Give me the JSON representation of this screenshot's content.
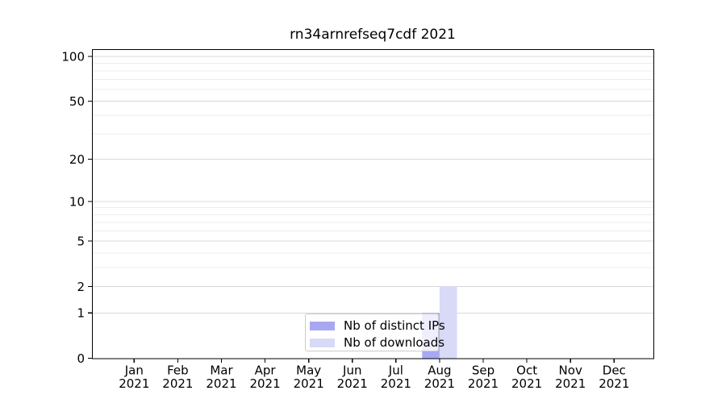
{
  "title": "rn34arnrefseq7cdf 2021",
  "legend": {
    "items": [
      {
        "label": "Nb of distinct IPs",
        "color": "#a8a8f2"
      },
      {
        "label": "Nb of downloads",
        "color": "#d9d9f8"
      }
    ]
  },
  "chart_data": {
    "type": "bar",
    "title": "rn34arnrefseq7cdf 2021",
    "categories": [
      "Jan 2021",
      "Feb 2021",
      "Mar 2021",
      "Apr 2021",
      "May 2021",
      "Jun 2021",
      "Jul 2021",
      "Aug 2021",
      "Sep 2021",
      "Oct 2021",
      "Nov 2021",
      "Dec 2021"
    ],
    "series": [
      {
        "name": "Nb of distinct IPs",
        "color": "#a8a8f2",
        "values": [
          0,
          0,
          0,
          0,
          0,
          0,
          0,
          1,
          0,
          0,
          0,
          0
        ]
      },
      {
        "name": "Nb of downloads",
        "color": "#d9d9f8",
        "values": [
          0,
          0,
          0,
          0,
          0,
          0,
          0,
          2,
          0,
          0,
          0,
          0
        ]
      }
    ],
    "xlabel": "",
    "ylabel": "",
    "yscale": "log1p",
    "y_ticks": [
      0,
      1,
      2,
      5,
      10,
      20,
      50,
      100
    ],
    "y_minor_ticks": [
      3,
      4,
      6,
      7,
      8,
      9,
      30,
      40,
      60,
      70,
      80,
      90
    ],
    "ylim": [
      0,
      112
    ],
    "grid": "horizontal",
    "legend_position": "lower-center-inside"
  },
  "colors": {
    "axis": "#000000",
    "grid_major": "#d8d8d8",
    "grid_minor": "#ececec",
    "background": "#ffffff",
    "legend_border": "#cccccc",
    "tick_label": "#000000"
  }
}
